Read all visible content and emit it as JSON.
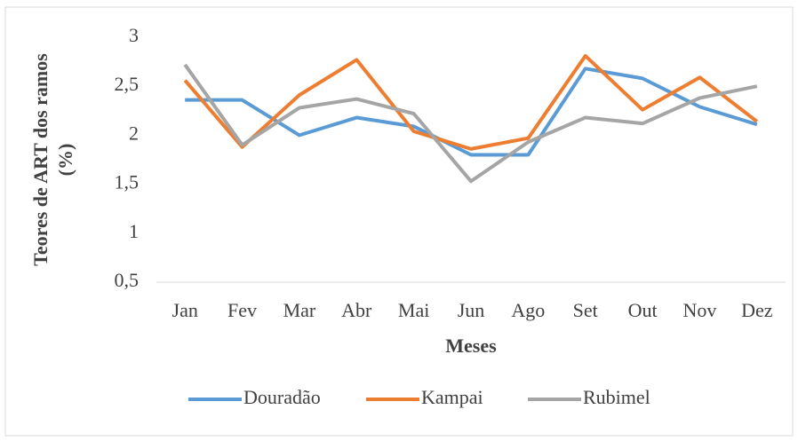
{
  "chart_data": {
    "type": "line",
    "y_label": [
      "Teores de  ART dos ramos",
      "(%)"
    ],
    "x_label": "Meses",
    "categories": [
      "Jan",
      "Fev",
      "Mar",
      "Abr",
      "Mai",
      "Jun",
      "Ago",
      "Set",
      "Out",
      "Nov",
      "Dez"
    ],
    "series": [
      {
        "name": "Douradão",
        "color": "#5b9bd5",
        "values": [
          2.36,
          2.36,
          2.0,
          2.18,
          2.09,
          1.8,
          1.8,
          2.68,
          2.58,
          2.29,
          2.11
        ]
      },
      {
        "name": "Kampai",
        "color": "#ed7d31",
        "values": [
          2.56,
          1.88,
          2.41,
          2.77,
          2.04,
          1.86,
          1.97,
          2.81,
          2.26,
          2.59,
          2.14
        ]
      },
      {
        "name": "Rubimel",
        "color": "#a5a5a5",
        "values": [
          2.72,
          1.9,
          2.28,
          2.37,
          2.22,
          1.53,
          1.93,
          2.18,
          2.12,
          2.38,
          2.5
        ]
      }
    ],
    "ylim": [
      0.5,
      3
    ],
    "yticks": [
      {
        "value": 0.5,
        "label": "0,5"
      },
      1,
      {
        "value": 1.5,
        "label": "1,5"
      },
      2,
      {
        "value": 2.5,
        "label": "2,5"
      },
      3
    ],
    "grid": false,
    "legend": "bottom"
  }
}
